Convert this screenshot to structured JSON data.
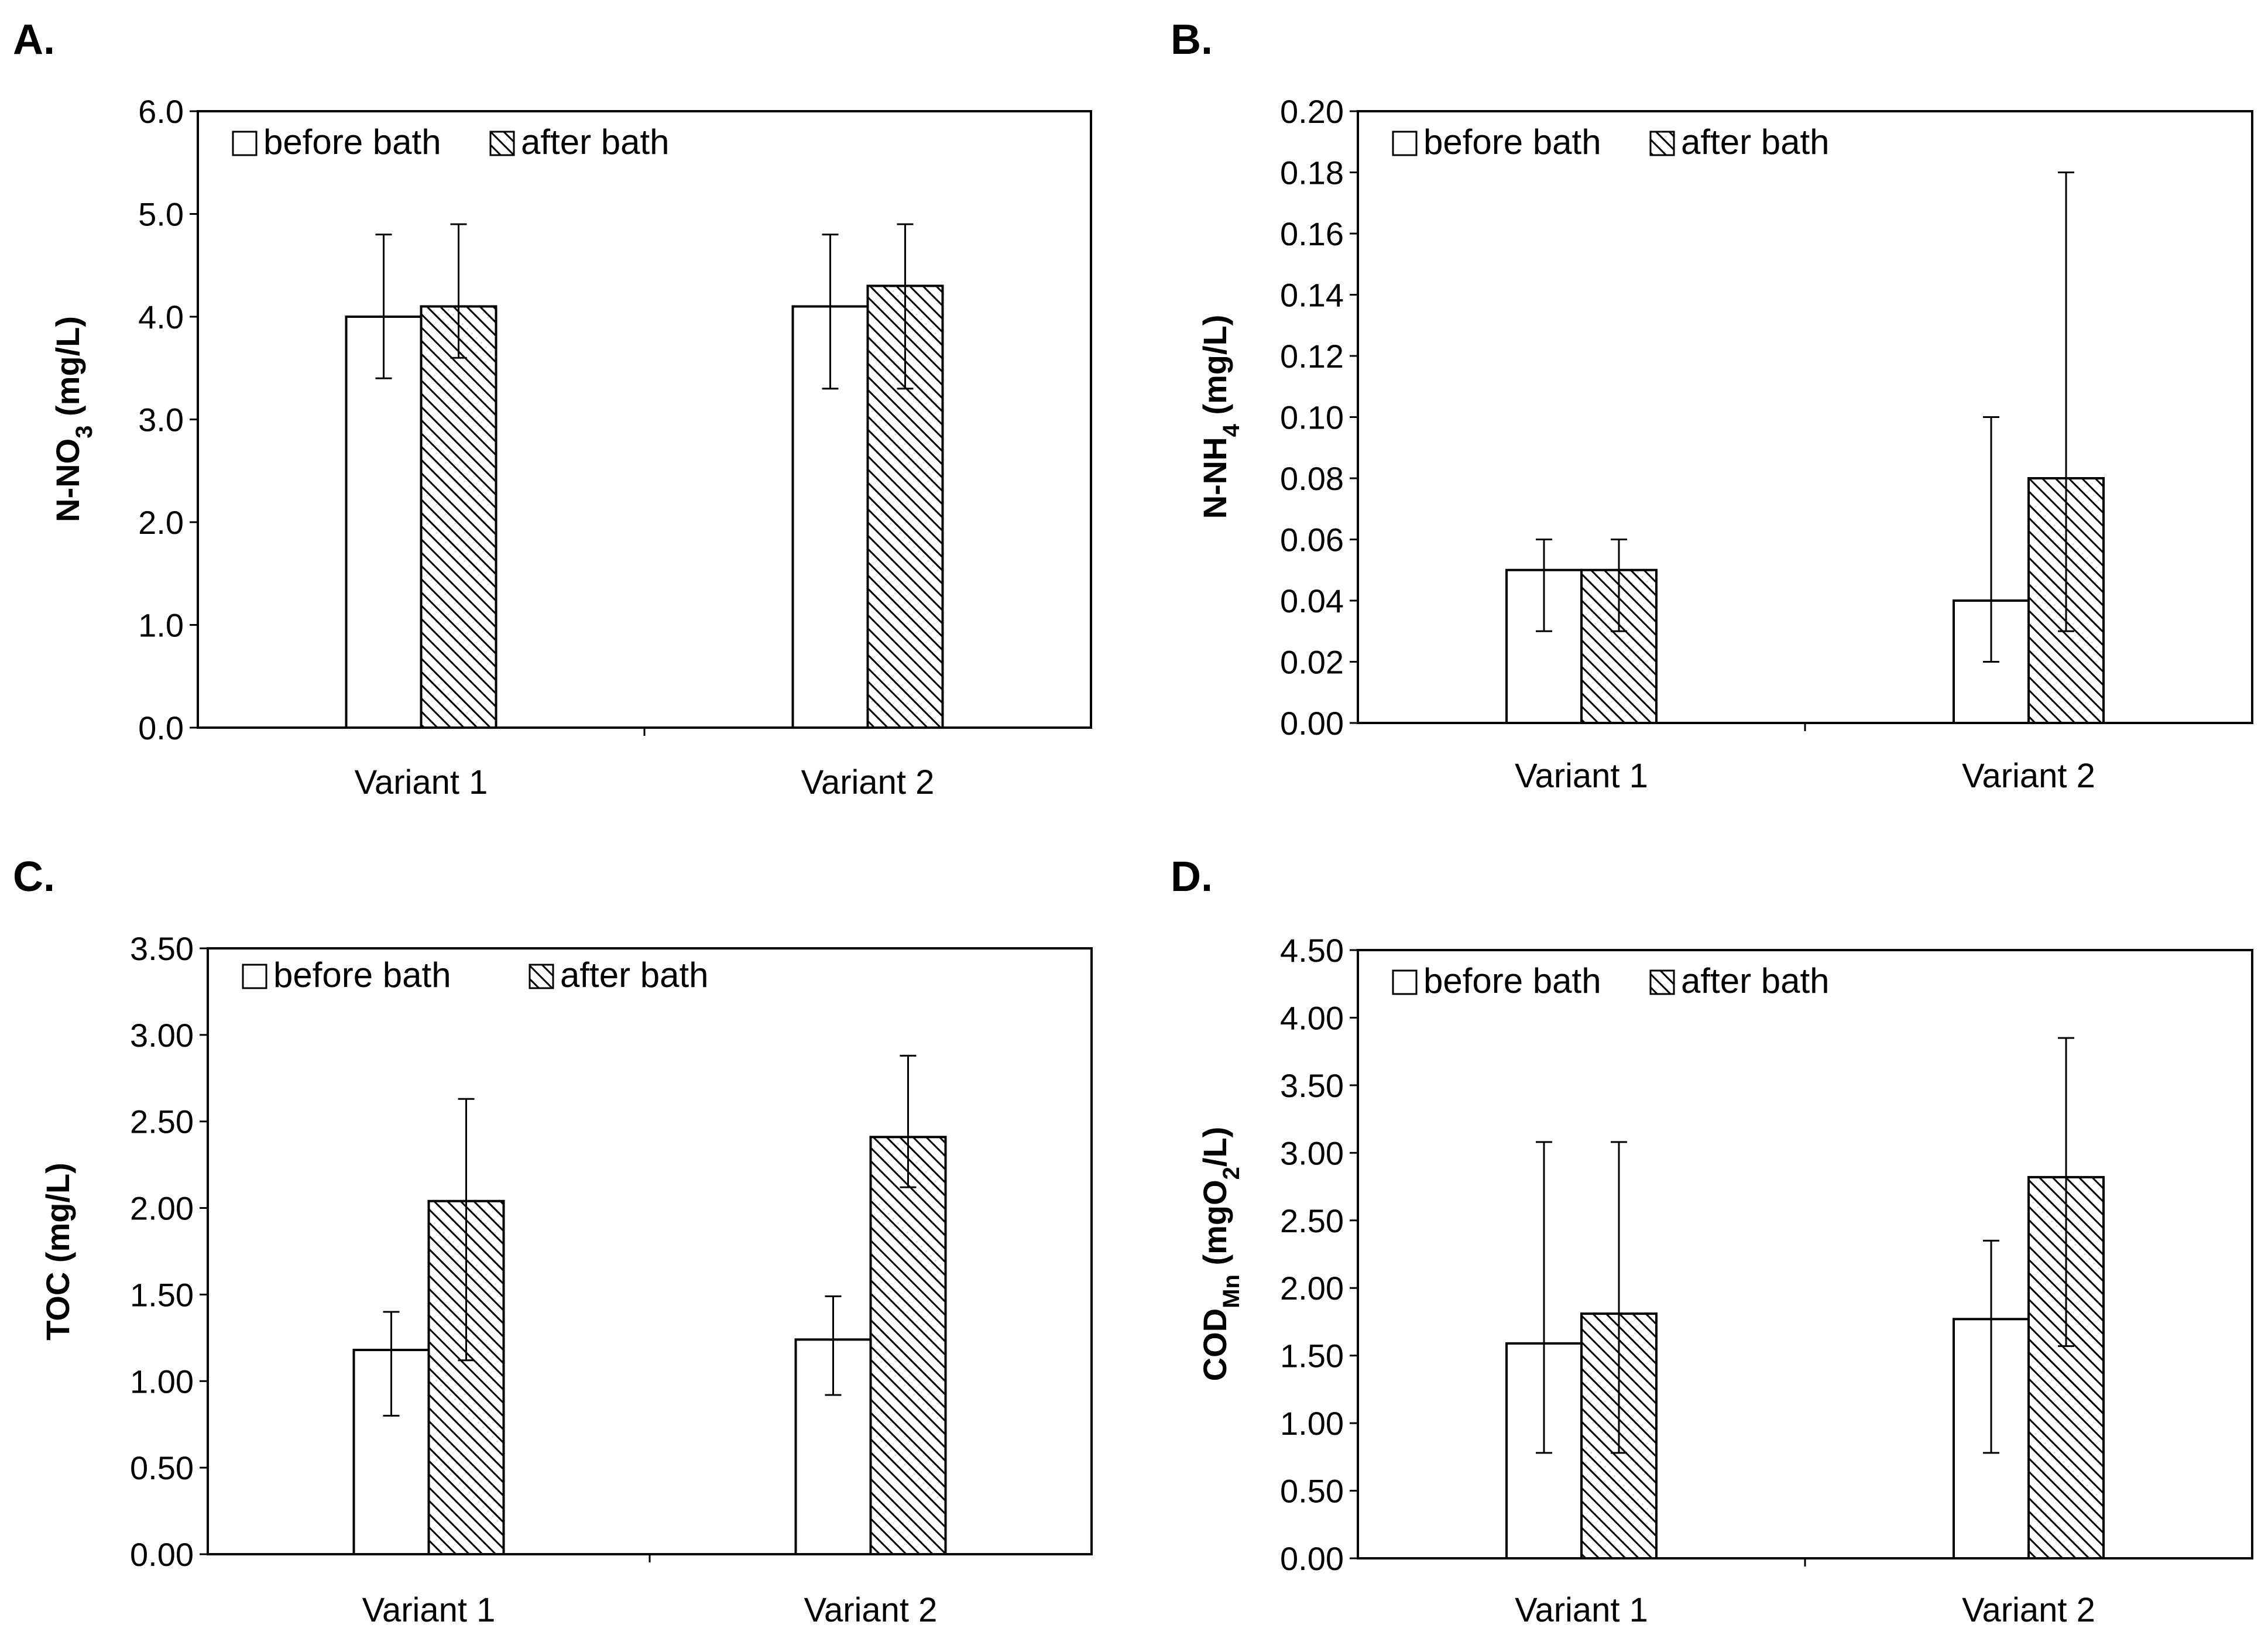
{
  "chart_data": [
    {
      "panel": "A.",
      "type": "bar",
      "categories": [
        "Variant 1",
        "Variant 2"
      ],
      "series": [
        {
          "name": "before bath",
          "values": [
            4.0,
            4.1
          ],
          "err_low": [
            3.4,
            3.3
          ],
          "err_high": [
            4.8,
            4.8
          ],
          "style": "plain"
        },
        {
          "name": "after bath",
          "values": [
            4.1,
            4.3
          ],
          "err_low": [
            3.6,
            3.3
          ],
          "err_high": [
            4.9,
            4.9
          ],
          "style": "hatched"
        }
      ],
      "ylabel": {
        "main": "N-NO",
        "sub": "3",
        "tail": " (mg/L)"
      },
      "ylim": [
        0,
        6
      ],
      "yticks": [
        "0.0",
        "1.0",
        "2.0",
        "3.0",
        "4.0",
        "5.0",
        "6.0"
      ],
      "legend": "top-left"
    },
    {
      "panel": "B.",
      "type": "bar",
      "categories": [
        "Variant 1",
        "Variant 2"
      ],
      "series": [
        {
          "name": "before bath",
          "values": [
            0.05,
            0.04
          ],
          "err_low": [
            0.03,
            0.02
          ],
          "err_high": [
            0.06,
            0.1
          ],
          "style": "plain"
        },
        {
          "name": "after bath",
          "values": [
            0.05,
            0.08
          ],
          "err_low": [
            0.03,
            0.03
          ],
          "err_high": [
            0.06,
            0.18
          ],
          "style": "hatched"
        }
      ],
      "ylabel": {
        "main": "N-NH",
        "sub": "4",
        "tail": " (mg/L)"
      },
      "ylim": [
        0,
        0.2
      ],
      "yticks": [
        "0.00",
        "0.02",
        "0.04",
        "0.06",
        "0.08",
        "0.10",
        "0.12",
        "0.14",
        "0.16",
        "0.18",
        "0.20"
      ],
      "legend": "top-left"
    },
    {
      "panel": "C.",
      "type": "bar",
      "categories": [
        "Variant 1",
        "Variant 2"
      ],
      "series": [
        {
          "name": "before bath",
          "values": [
            1.18,
            1.24
          ],
          "err_low": [
            0.8,
            0.92
          ],
          "err_high": [
            1.4,
            1.49
          ],
          "style": "plain"
        },
        {
          "name": "after bath",
          "values": [
            2.04,
            2.41
          ],
          "err_low": [
            1.12,
            2.12
          ],
          "err_high": [
            2.63,
            2.88
          ],
          "style": "hatched"
        }
      ],
      "ylabel": {
        "main": "TOC (mg/L)",
        "sub": "",
        "tail": ""
      },
      "ylim": [
        0,
        3.5
      ],
      "yticks": [
        "0.00",
        "0.50",
        "1.00",
        "1.50",
        "2.00",
        "2.50",
        "3.00",
        "3.50"
      ],
      "legend": "top-left"
    },
    {
      "panel": "D.",
      "type": "bar",
      "categories": [
        "Variant 1",
        "Variant 2"
      ],
      "series": [
        {
          "name": "before bath",
          "values": [
            1.59,
            1.77
          ],
          "err_low": [
            0.78,
            0.78
          ],
          "err_high": [
            3.08,
            2.35
          ],
          "style": "plain"
        },
        {
          "name": "after bath",
          "values": [
            1.81,
            2.82
          ],
          "err_low": [
            0.78,
            1.57
          ],
          "err_high": [
            3.08,
            3.85
          ],
          "style": "hatched"
        }
      ],
      "ylabel": {
        "main": "COD",
        "sub": "Mn",
        "tail": " (mgO",
        "sub2": "2",
        "tail2": "/L)"
      },
      "ylim": [
        0,
        4.5
      ],
      "yticks": [
        "0.00",
        "0.50",
        "1.00",
        "1.50",
        "2.00",
        "2.50",
        "3.00",
        "3.50",
        "4.00",
        "4.50"
      ],
      "legend": "top-left"
    }
  ],
  "colors": {
    "axis": "#000000",
    "bar_fill": "#ffffff",
    "hatch": "#000000",
    "background": "#ffffff"
  }
}
